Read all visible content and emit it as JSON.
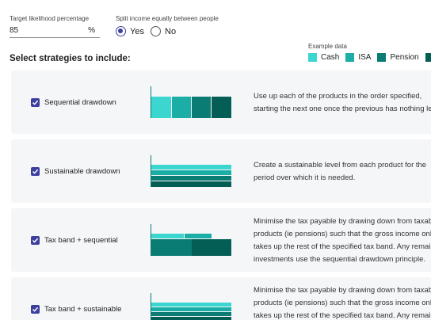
{
  "target": {
    "label": "Target likelihood percentage",
    "value": "85",
    "unit": "%"
  },
  "split": {
    "label": "Split income equally between people",
    "options": [
      "Yes",
      "No"
    ],
    "selected": "Yes"
  },
  "section_title": "Select strategies to include:",
  "legend": {
    "title": "Example data",
    "items": [
      {
        "label": "Cash",
        "color": "#3ad6cf"
      },
      {
        "label": "ISA",
        "color": "#1aaea6"
      },
      {
        "label": "Pension",
        "color": "#0b7c73"
      },
      {
        "label": "",
        "color": "#055e56"
      }
    ]
  },
  "strategies": [
    {
      "name": "Sequential drawdown",
      "checked": true,
      "description": [
        "Use up each of the products in the order specified,",
        "starting the next one once the previous has nothing lef"
      ]
    },
    {
      "name": "Sustainable drawdown",
      "checked": true,
      "description": [
        "Create a sustainable level from each product for the",
        "period over which it is needed."
      ]
    },
    {
      "name": "Tax band + sequential",
      "checked": true,
      "description": [
        "Minimise the tax payable by drawing down from taxabl",
        "products (ie pensions) such that the gross income only",
        "takes up the rest of the specified tax band. Any remain",
        "investments use the sequential drawdown principle."
      ]
    },
    {
      "name": "Tax band + sustainable",
      "checked": true,
      "description": [
        "Minimise the tax payable by drawing down from taxabl",
        "products (ie pensions) such that the gross income only",
        "takes up the rest of the specified tax band. Any remain"
      ]
    }
  ]
}
